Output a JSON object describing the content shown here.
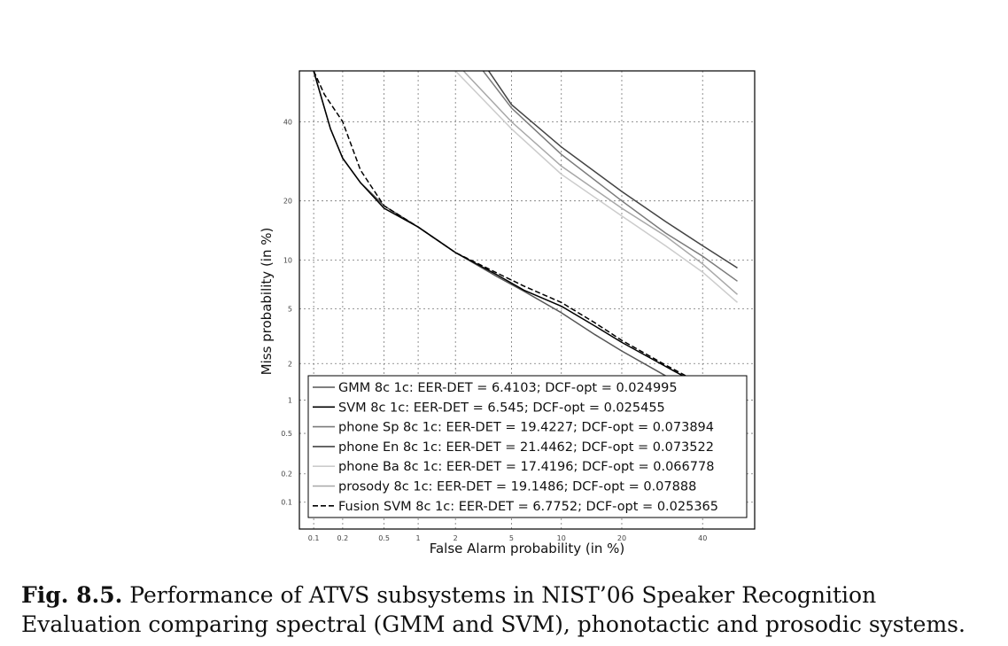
{
  "chart_data": {
    "type": "line",
    "title": "",
    "xlabel": "False Alarm probability (in %)",
    "ylabel": "Miss probability (in %)",
    "x_scale": "probit",
    "y_scale": "probit",
    "xlim": [
      0.07,
      55
    ],
    "ylim": [
      0.05,
      55
    ],
    "x_ticks": [
      0.1,
      0.2,
      0.5,
      1,
      2,
      5,
      10,
      20,
      40
    ],
    "x_tick_labels": [
      "0.1",
      "0.2",
      "0.5",
      "1",
      "2",
      "5",
      "10",
      "20",
      "40"
    ],
    "y_ticks": [
      0.1,
      0.2,
      0.5,
      1,
      2,
      5,
      10,
      20,
      40
    ],
    "y_tick_labels": [
      "0.1",
      "0.2",
      "0.5",
      "1",
      "2",
      "5",
      "10",
      "20",
      "40"
    ],
    "grid": true,
    "legend_position": "lower-left",
    "series": [
      {
        "name": "GMM 8c 1c: EER-DET = 6.4103; DCF-opt = 0.024995",
        "color": "#555555",
        "dash": "solid",
        "points": [
          [
            0.1,
            55
          ],
          [
            0.15,
            38
          ],
          [
            0.2,
            30
          ],
          [
            0.3,
            24
          ],
          [
            0.5,
            19
          ],
          [
            1,
            15
          ],
          [
            2,
            11
          ],
          [
            4,
            8
          ],
          [
            6,
            6.5
          ],
          [
            10,
            4.7
          ],
          [
            15,
            3.3
          ],
          [
            20,
            2.5
          ],
          [
            30,
            1.6
          ],
          [
            40,
            1.15
          ],
          [
            50,
            0.85
          ]
        ]
      },
      {
        "name": "SVM 8c 1c: EER-DET = 6.545; DCF-opt = 0.025455",
        "color": "#000000",
        "dash": "solid",
        "points": [
          [
            0.1,
            55
          ],
          [
            0.15,
            38
          ],
          [
            0.2,
            30
          ],
          [
            0.3,
            24
          ],
          [
            0.5,
            18.5
          ],
          [
            1,
            15
          ],
          [
            2,
            11
          ],
          [
            4,
            8.2
          ],
          [
            6,
            6.6
          ],
          [
            10,
            5.2
          ],
          [
            15,
            3.8
          ],
          [
            20,
            2.9
          ],
          [
            30,
            1.9
          ],
          [
            40,
            1.3
          ],
          [
            50,
            0.9
          ]
        ]
      },
      {
        "name": "phone Sp 8c 1c: EER-DET = 19.4227; DCF-opt = 0.073894",
        "color": "#7a7a7a",
        "dash": "solid",
        "points": [
          [
            3.2,
            55
          ],
          [
            5,
            44
          ],
          [
            10,
            31
          ],
          [
            20,
            20
          ],
          [
            30,
            14
          ],
          [
            40,
            10.5
          ],
          [
            50,
            7.5
          ]
        ]
      },
      {
        "name": "phone En 8c 1c: EER-DET = 21.4462; DCF-opt = 0.073522",
        "color": "#444444",
        "dash": "solid",
        "points": [
          [
            3.5,
            55
          ],
          [
            5,
            45
          ],
          [
            10,
            33
          ],
          [
            20,
            22
          ],
          [
            30,
            16
          ],
          [
            40,
            12
          ],
          [
            50,
            9
          ]
        ]
      },
      {
        "name": "phone Ba 8c 1c: EER-DET = 17.4196; DCF-opt = 0.066778",
        "color": "#cccccc",
        "dash": "solid",
        "points": [
          [
            2,
            55
          ],
          [
            5,
            38
          ],
          [
            10,
            26
          ],
          [
            20,
            17
          ],
          [
            30,
            12
          ],
          [
            40,
            8.5
          ],
          [
            50,
            5.5
          ]
        ]
      },
      {
        "name": "prosody 8c 1c: EER-DET = 19.1486; DCF-opt = 0.07888",
        "color": "#a8a8a8",
        "dash": "solid",
        "points": [
          [
            2.3,
            55
          ],
          [
            5,
            40
          ],
          [
            10,
            28
          ],
          [
            20,
            18.5
          ],
          [
            30,
            13.5
          ],
          [
            40,
            9.5
          ],
          [
            50,
            6.2
          ]
        ]
      },
      {
        "name": "Fusion SVM 8c 1c: EER-DET = 6.7752; DCF-opt = 0.025365",
        "color": "#000000",
        "dash": "dashed",
        "points": [
          [
            0.1,
            55
          ],
          [
            0.13,
            48
          ],
          [
            0.18,
            42
          ],
          [
            0.2,
            40
          ],
          [
            0.3,
            27
          ],
          [
            0.5,
            19
          ],
          [
            1,
            15
          ],
          [
            2,
            11
          ],
          [
            4,
            8.4
          ],
          [
            6,
            7
          ],
          [
            10,
            5.5
          ],
          [
            15,
            4
          ],
          [
            20,
            3
          ],
          [
            30,
            1.95
          ],
          [
            40,
            1.35
          ],
          [
            50,
            0.95
          ]
        ]
      }
    ]
  },
  "caption": {
    "label": "Fig. 8.5.",
    "text": "Performance of ATVS subsystems in NIST’06 Speaker Recognition Evaluation comparing spectral (GMM and SVM), phonotactic and prosodic systems."
  }
}
